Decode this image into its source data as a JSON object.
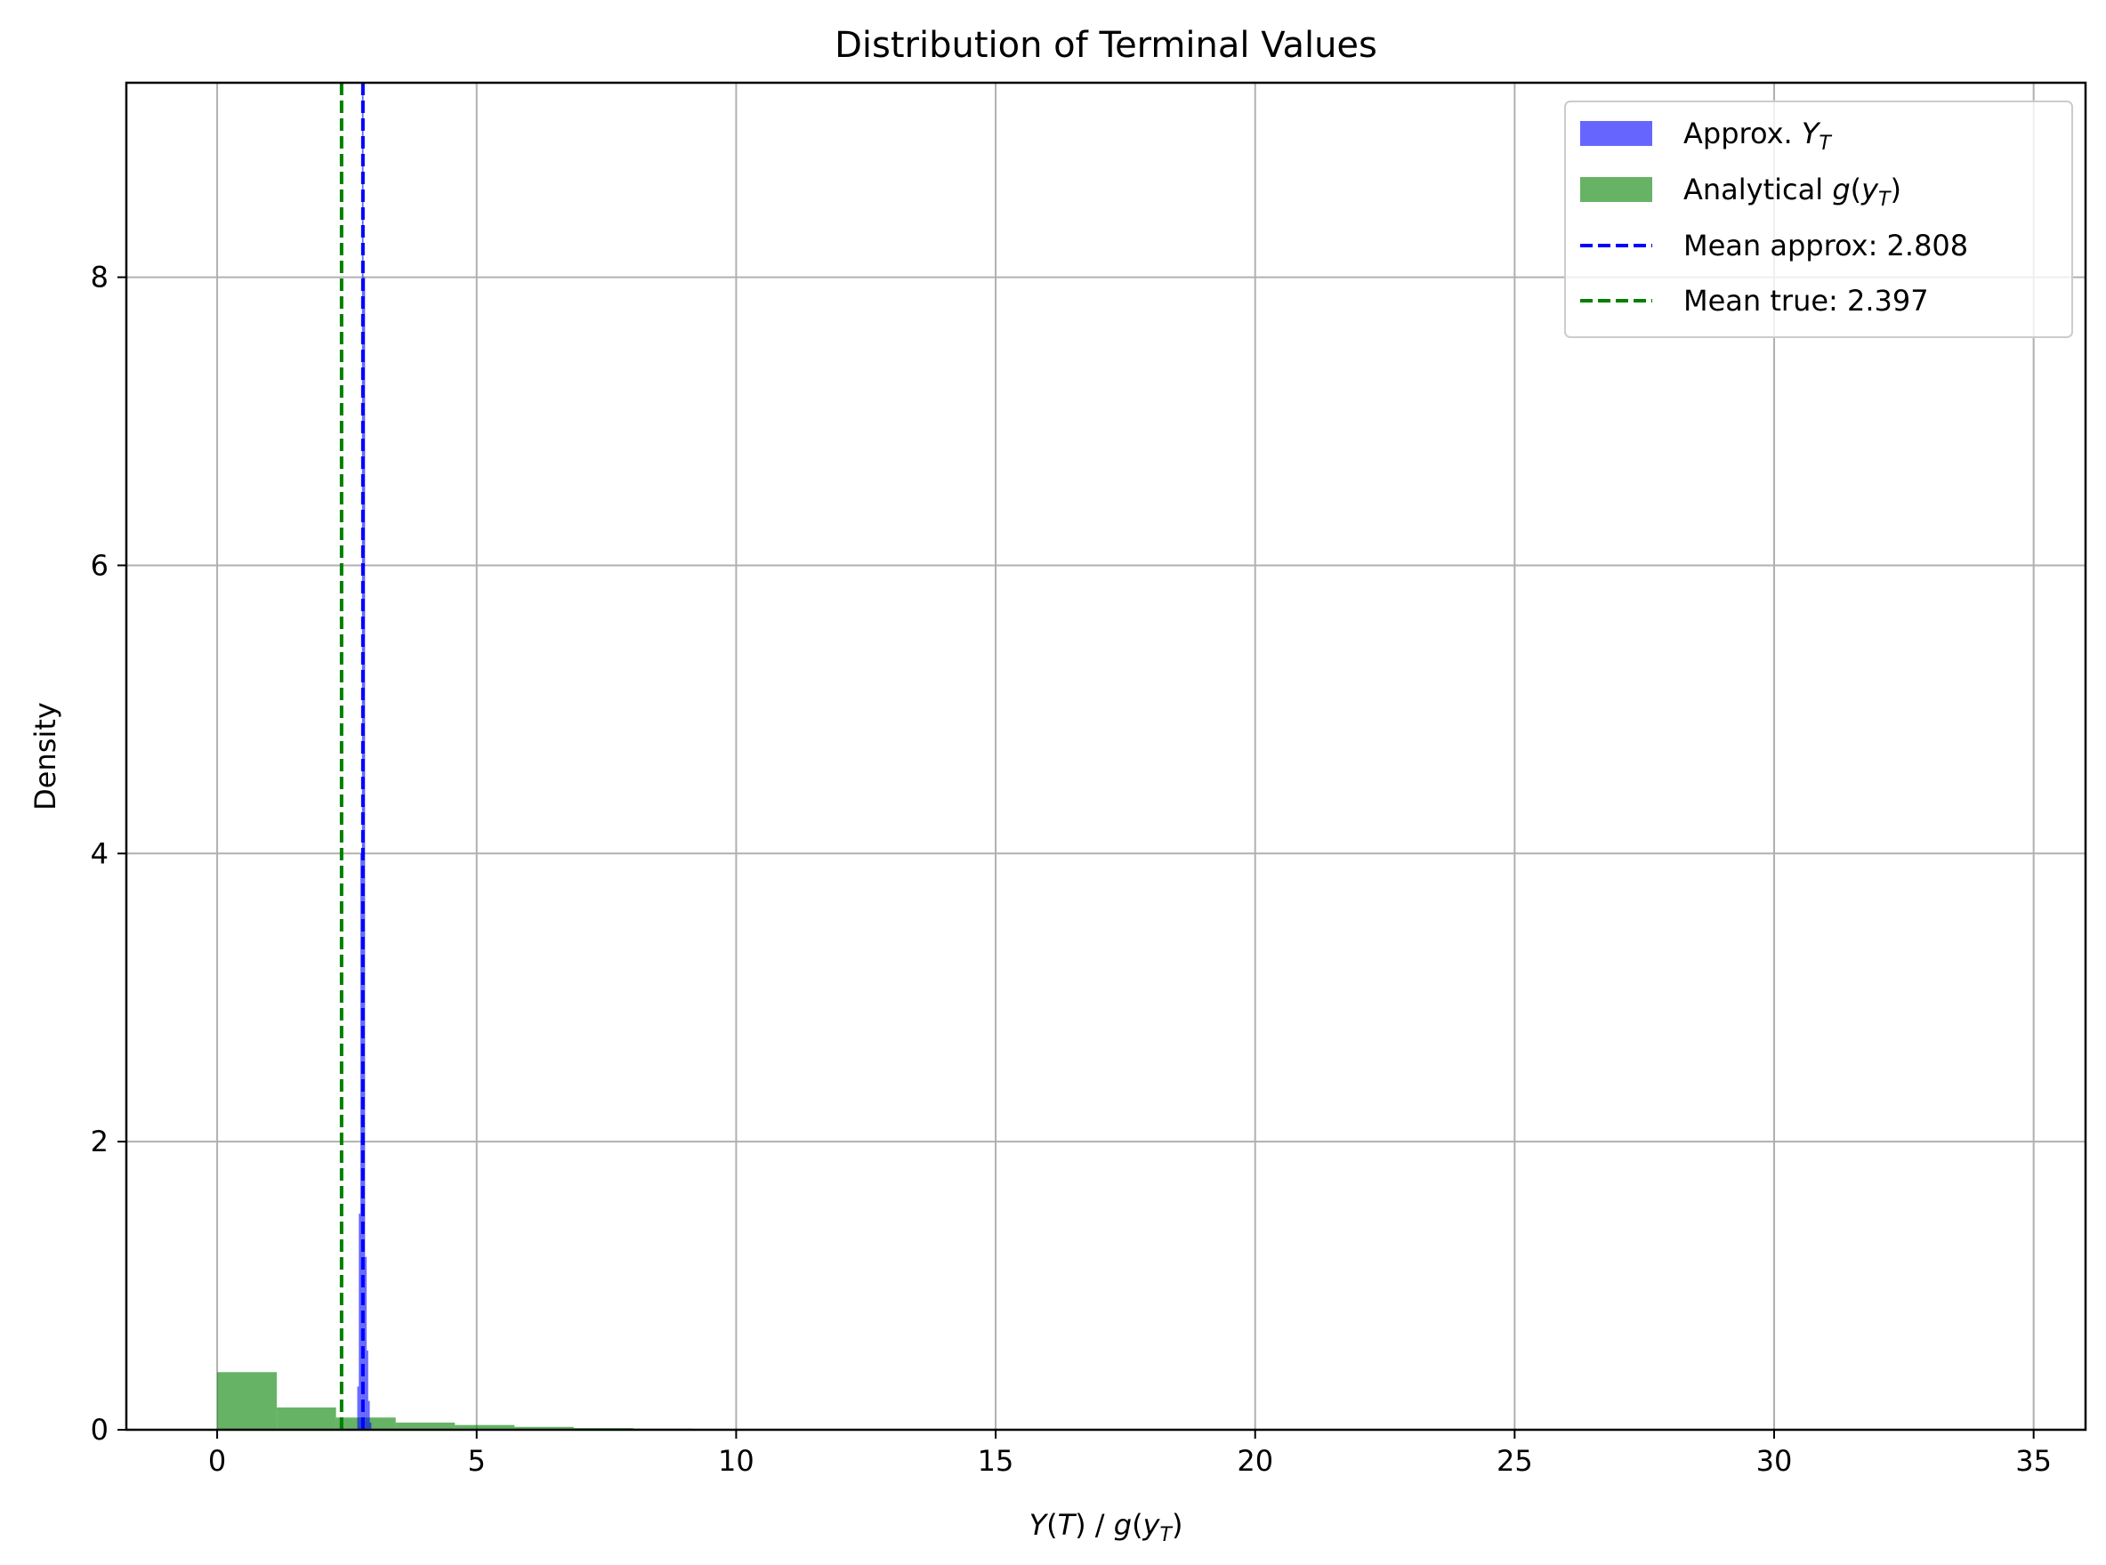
{
  "chart_data": {
    "type": "histogram",
    "title": "Distribution of Terminal Values",
    "xlabel": "Y(T) / g(y_T)",
    "xlabel_parts": [
      "Y",
      "(",
      "T",
      ") / ",
      "g",
      "(",
      "y",
      "T",
      ")"
    ],
    "ylabel": "Density",
    "xlim": [
      -1.75,
      36.0
    ],
    "ylim": [
      0,
      9.35
    ],
    "x_ticks": [
      0,
      5,
      10,
      15,
      20,
      25,
      30,
      35
    ],
    "y_ticks": [
      0,
      2,
      4,
      6,
      8
    ],
    "grid": true,
    "legend_position": "top-right",
    "series": [
      {
        "name": "Approx. Y_T",
        "name_parts": [
          "Approx. ",
          "Y",
          "T"
        ],
        "kind": "histogram",
        "color": "#0000ff",
        "alpha": 0.6,
        "bins": [
          {
            "x0": 2.7,
            "x1": 2.73,
            "y": 0.3
          },
          {
            "x0": 2.73,
            "x1": 2.76,
            "y": 1.5
          },
          {
            "x0": 2.76,
            "x1": 2.79,
            "y": 4.0
          },
          {
            "x0": 2.79,
            "x1": 2.82,
            "y": 9.3
          },
          {
            "x0": 2.82,
            "x1": 2.85,
            "y": 8.0
          },
          {
            "x0": 2.85,
            "x1": 2.88,
            "y": 1.2
          },
          {
            "x0": 2.88,
            "x1": 2.91,
            "y": 0.55
          },
          {
            "x0": 2.91,
            "x1": 2.94,
            "y": 0.2
          },
          {
            "x0": 2.94,
            "x1": 2.97,
            "y": 0.05
          }
        ]
      },
      {
        "name": "Analytical g(y_T)",
        "name_parts": [
          "Analytical ",
          "g",
          "(",
          "y",
          "T",
          ")"
        ],
        "kind": "histogram",
        "color": "#008000",
        "alpha": 0.6,
        "bins": [
          {
            "x0": 0.0,
            "x1": 1.15,
            "y": 0.4
          },
          {
            "x0": 1.15,
            "x1": 2.29,
            "y": 0.155
          },
          {
            "x0": 2.29,
            "x1": 3.44,
            "y": 0.085
          },
          {
            "x0": 3.44,
            "x1": 4.58,
            "y": 0.05
          },
          {
            "x0": 4.58,
            "x1": 5.73,
            "y": 0.033
          },
          {
            "x0": 5.73,
            "x1": 6.87,
            "y": 0.02
          },
          {
            "x0": 6.87,
            "x1": 8.02,
            "y": 0.012
          },
          {
            "x0": 8.02,
            "x1": 9.16,
            "y": 0.008
          },
          {
            "x0": 9.16,
            "x1": 10.31,
            "y": 0.005
          },
          {
            "x0": 10.31,
            "x1": 11.45,
            "y": 0.003
          },
          {
            "x0": 11.45,
            "x1": 12.6,
            "y": 0.002
          }
        ]
      },
      {
        "name": "Mean approx: 2.808",
        "kind": "vline",
        "x": 2.808,
        "color": "#0000ff",
        "linestyle": "dashed"
      },
      {
        "name": "Mean true: 2.397",
        "kind": "vline",
        "x": 2.397,
        "color": "#008000",
        "linestyle": "dashed"
      }
    ]
  }
}
